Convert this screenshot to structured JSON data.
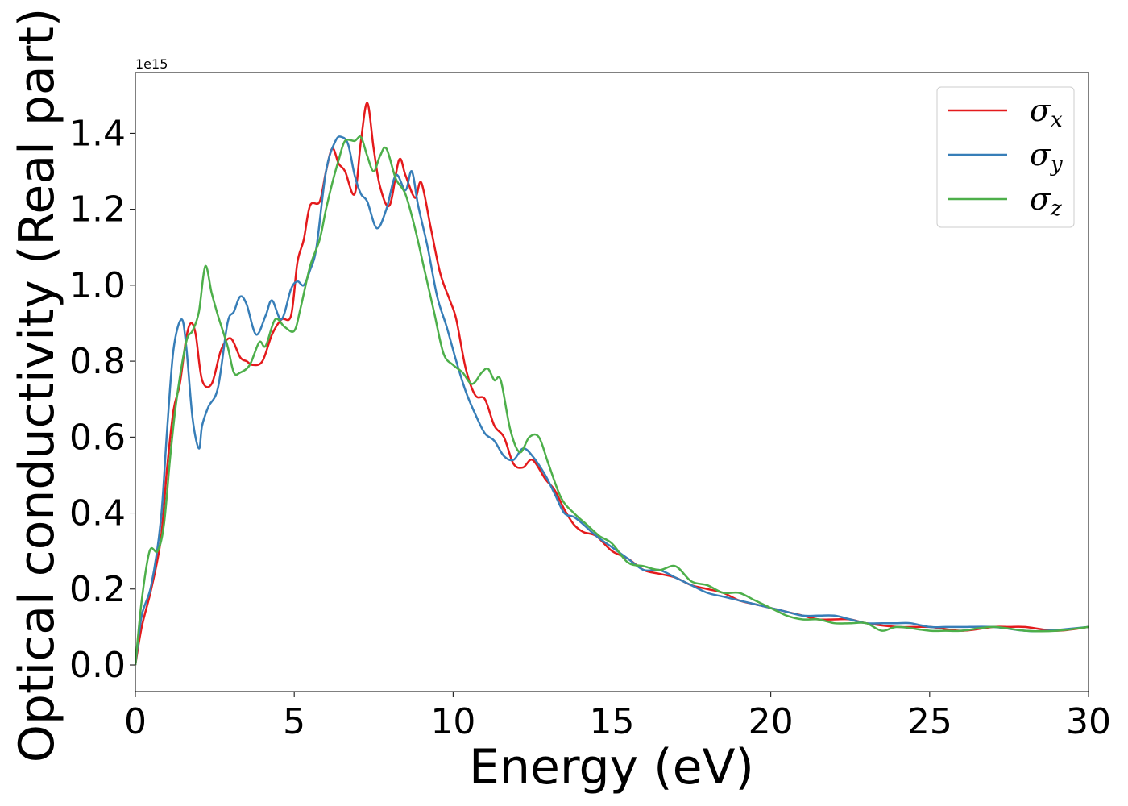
{
  "chart_data": {
    "type": "line",
    "xlabel": "Energy (eV)",
    "ylabel": "Optical conductivity (Real part)",
    "y_offset_text": "1e15",
    "xlim": [
      0,
      30
    ],
    "ylim": [
      -0.07,
      1.56
    ],
    "x_ticks": [
      0,
      5,
      10,
      15,
      20,
      25,
      30
    ],
    "y_ticks": [
      0.0,
      0.2,
      0.4,
      0.6,
      0.8,
      1.0,
      1.2,
      1.4
    ],
    "x_tick_labels": [
      "0",
      "5",
      "10",
      "15",
      "20",
      "25",
      "30"
    ],
    "y_tick_labels": [
      "0.0",
      "0.2",
      "0.4",
      "0.6",
      "0.8",
      "1.0",
      "1.2",
      "1.4"
    ],
    "grid": false,
    "legend_position": "top-right",
    "series": [
      {
        "name": "σx",
        "symbol": "σ",
        "subscript": "x",
        "color": "#e41a1c",
        "x": [
          0,
          0.2,
          0.5,
          0.8,
          1.0,
          1.2,
          1.4,
          1.6,
          1.75,
          1.9,
          2.1,
          2.4,
          2.7,
          3.0,
          3.3,
          3.5,
          3.7,
          4.0,
          4.3,
          4.6,
          4.9,
          5.1,
          5.3,
          5.5,
          5.8,
          6.0,
          6.2,
          6.4,
          6.6,
          6.9,
          7.1,
          7.3,
          7.5,
          7.7,
          8.0,
          8.3,
          8.5,
          8.8,
          9.0,
          9.3,
          9.6,
          9.9,
          10.1,
          10.4,
          10.7,
          11.0,
          11.3,
          11.6,
          11.9,
          12.2,
          12.5,
          12.9,
          13.2,
          13.5,
          13.8,
          14.1,
          14.5,
          15.0,
          15.5,
          16.0,
          16.5,
          17.0,
          17.5,
          18.0,
          18.5,
          19.0,
          19.5,
          20.0,
          20.5,
          21.0,
          21.5,
          22.0,
          22.5,
          23.0,
          24.0,
          25.0,
          26.0,
          27.0,
          27.5,
          28.0,
          29.0,
          30.0
        ],
        "y": [
          0.0,
          0.1,
          0.2,
          0.33,
          0.52,
          0.67,
          0.74,
          0.86,
          0.9,
          0.87,
          0.75,
          0.74,
          0.83,
          0.86,
          0.81,
          0.8,
          0.79,
          0.8,
          0.87,
          0.91,
          0.92,
          1.06,
          1.12,
          1.21,
          1.22,
          1.3,
          1.36,
          1.32,
          1.3,
          1.24,
          1.38,
          1.48,
          1.36,
          1.26,
          1.21,
          1.33,
          1.29,
          1.23,
          1.27,
          1.15,
          1.03,
          0.96,
          0.91,
          0.78,
          0.71,
          0.7,
          0.63,
          0.6,
          0.53,
          0.52,
          0.54,
          0.49,
          0.46,
          0.41,
          0.37,
          0.35,
          0.34,
          0.3,
          0.28,
          0.25,
          0.24,
          0.23,
          0.21,
          0.2,
          0.19,
          0.17,
          0.16,
          0.15,
          0.14,
          0.13,
          0.12,
          0.12,
          0.12,
          0.11,
          0.1,
          0.1,
          0.09,
          0.1,
          0.1,
          0.1,
          0.09,
          0.1
        ]
      },
      {
        "name": "σy",
        "symbol": "σ",
        "subscript": "y",
        "color": "#377eb8",
        "x": [
          0,
          0.2,
          0.5,
          0.8,
          1.0,
          1.2,
          1.45,
          1.6,
          1.8,
          2.0,
          2.1,
          2.3,
          2.6,
          2.9,
          3.1,
          3.3,
          3.5,
          3.8,
          4.1,
          4.3,
          4.6,
          4.9,
          5.1,
          5.3,
          5.5,
          5.7,
          6.0,
          6.3,
          6.5,
          6.7,
          6.9,
          7.1,
          7.3,
          7.6,
          7.9,
          8.2,
          8.5,
          8.7,
          8.9,
          9.2,
          9.5,
          9.8,
          10.1,
          10.4,
          10.7,
          11.0,
          11.3,
          11.6,
          11.9,
          12.2,
          12.5,
          12.9,
          13.2,
          13.5,
          13.8,
          14.1,
          14.5,
          15.0,
          15.5,
          16.0,
          16.5,
          17.0,
          17.5,
          18.0,
          18.5,
          19.0,
          19.5,
          20.0,
          20.5,
          21.0,
          21.5,
          22.0,
          22.5,
          23.0,
          23.5,
          24.0,
          24.4,
          25.0,
          25.5,
          26.0,
          27.0,
          28.0,
          28.7,
          30.0
        ],
        "y": [
          0.0,
          0.13,
          0.21,
          0.38,
          0.62,
          0.83,
          0.91,
          0.84,
          0.65,
          0.57,
          0.63,
          0.68,
          0.73,
          0.9,
          0.93,
          0.97,
          0.95,
          0.87,
          0.92,
          0.96,
          0.91,
          0.99,
          1.01,
          1.0,
          1.04,
          1.1,
          1.3,
          1.38,
          1.39,
          1.37,
          1.29,
          1.24,
          1.22,
          1.15,
          1.2,
          1.29,
          1.25,
          1.3,
          1.21,
          1.1,
          0.97,
          0.89,
          0.8,
          0.72,
          0.66,
          0.61,
          0.59,
          0.55,
          0.54,
          0.57,
          0.55,
          0.5,
          0.45,
          0.4,
          0.39,
          0.37,
          0.34,
          0.31,
          0.28,
          0.25,
          0.25,
          0.23,
          0.21,
          0.19,
          0.18,
          0.17,
          0.16,
          0.15,
          0.14,
          0.13,
          0.13,
          0.13,
          0.12,
          0.11,
          0.11,
          0.11,
          0.11,
          0.1,
          0.1,
          0.1,
          0.1,
          0.09,
          0.09,
          0.1
        ]
      },
      {
        "name": "σz",
        "symbol": "σ",
        "subscript": "z",
        "color": "#4daf4a",
        "x": [
          0,
          0.2,
          0.45,
          0.7,
          0.9,
          1.1,
          1.3,
          1.6,
          1.8,
          2.0,
          2.2,
          2.4,
          2.6,
          2.9,
          3.1,
          3.3,
          3.6,
          3.9,
          4.1,
          4.4,
          4.7,
          5.0,
          5.2,
          5.5,
          5.8,
          6.0,
          6.2,
          6.4,
          6.6,
          6.9,
          7.1,
          7.3,
          7.5,
          7.7,
          7.9,
          8.2,
          8.5,
          8.8,
          9.1,
          9.4,
          9.7,
          10.0,
          10.3,
          10.6,
          10.9,
          11.1,
          11.3,
          11.5,
          11.8,
          12.1,
          12.4,
          12.7,
          13.0,
          13.4,
          13.8,
          14.2,
          14.6,
          15.0,
          15.5,
          16.0,
          16.5,
          17.0,
          17.5,
          18.0,
          18.5,
          19.0,
          19.5,
          20.0,
          20.5,
          21.0,
          21.5,
          22.0,
          22.5,
          23.0,
          23.5,
          24.0,
          25.0,
          25.5,
          26.0,
          27.0,
          28.0,
          29.0,
          30.0
        ],
        "y": [
          0.0,
          0.17,
          0.3,
          0.3,
          0.37,
          0.55,
          0.7,
          0.85,
          0.88,
          0.93,
          1.05,
          0.98,
          0.92,
          0.84,
          0.77,
          0.77,
          0.79,
          0.85,
          0.84,
          0.91,
          0.89,
          0.88,
          0.94,
          1.05,
          1.12,
          1.2,
          1.27,
          1.33,
          1.38,
          1.38,
          1.39,
          1.34,
          1.3,
          1.34,
          1.36,
          1.28,
          1.24,
          1.15,
          1.04,
          0.93,
          0.82,
          0.79,
          0.77,
          0.74,
          0.77,
          0.78,
          0.75,
          0.75,
          0.62,
          0.56,
          0.6,
          0.6,
          0.53,
          0.44,
          0.4,
          0.37,
          0.34,
          0.32,
          0.27,
          0.26,
          0.25,
          0.26,
          0.22,
          0.21,
          0.19,
          0.19,
          0.17,
          0.15,
          0.13,
          0.12,
          0.12,
          0.11,
          0.11,
          0.11,
          0.09,
          0.1,
          0.09,
          0.09,
          0.09,
          0.1,
          0.09,
          0.09,
          0.1
        ]
      }
    ]
  }
}
